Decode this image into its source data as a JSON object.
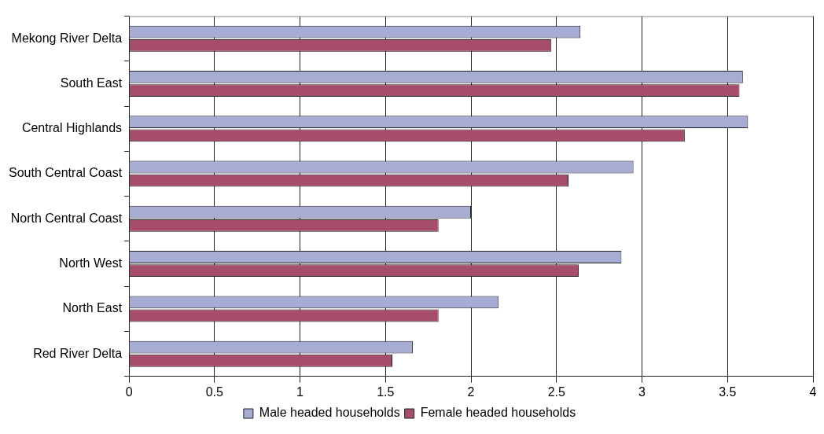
{
  "chart_data": {
    "type": "bar",
    "orientation": "horizontal",
    "categories": [
      "Mekong River Delta",
      "South East",
      "Central Highlands",
      "South Central Coast",
      "North Central Coast",
      "North West",
      "North East",
      "Red River Delta"
    ],
    "series": [
      {
        "name": "Male headed households",
        "color": "#a6acd4",
        "values": [
          2.64,
          3.59,
          3.62,
          2.95,
          2.0,
          2.88,
          2.16,
          1.66
        ]
      },
      {
        "name": "Female headed households",
        "color": "#a64d6e",
        "values": [
          2.47,
          3.57,
          3.25,
          2.57,
          1.81,
          2.63,
          1.81,
          1.54
        ]
      }
    ],
    "xlim": [
      0,
      4
    ],
    "xticks": [
      0,
      0.5,
      1,
      1.5,
      2,
      2.5,
      3,
      3.5,
      4
    ],
    "grid": "x",
    "legend": "bottom"
  }
}
